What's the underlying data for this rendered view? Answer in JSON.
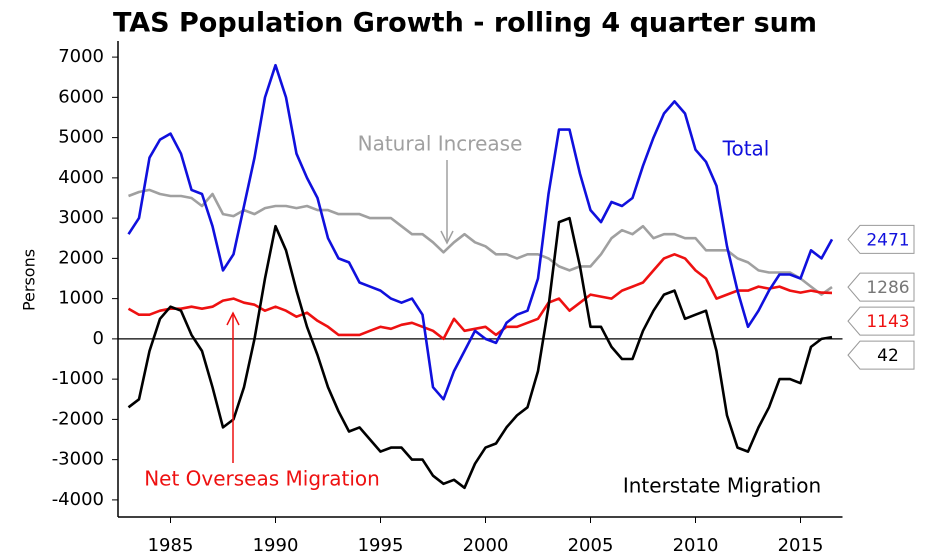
{
  "chart_data": {
    "type": "line",
    "title": "TAS Population Growth - rolling 4 quarter sum",
    "y_label": "Persons",
    "x": [
      1983,
      1983.5,
      1984,
      1984.5,
      1985,
      1985.5,
      1986,
      1986.5,
      1987,
      1987.5,
      1988,
      1988.5,
      1989,
      1989.5,
      1990,
      1990.5,
      1991,
      1991.5,
      1992,
      1992.5,
      1993,
      1993.5,
      1994,
      1994.5,
      1995,
      1995.5,
      1996,
      1996.5,
      1997,
      1997.5,
      1998,
      1998.5,
      1999,
      1999.5,
      2000,
      2000.5,
      2001,
      2001.5,
      2002,
      2002.5,
      2003,
      2003.5,
      2004,
      2004.5,
      2005,
      2005.5,
      2006,
      2006.5,
      2007,
      2007.5,
      2008,
      2008.5,
      2009,
      2009.5,
      2010,
      2010.5,
      2011,
      2011.5,
      2012,
      2012.5,
      2013,
      2013.5,
      2014,
      2014.5,
      2015,
      2015.5,
      2016,
      2016.5
    ],
    "series": [
      {
        "name": "Total",
        "color": "#1010dd",
        "values": [
          2600,
          3000,
          4500,
          4950,
          5100,
          4600,
          3700,
          3600,
          2800,
          1700,
          2100,
          3300,
          4500,
          6000,
          6800,
          6000,
          4600,
          4000,
          3500,
          2500,
          2000,
          1900,
          1400,
          1300,
          1200,
          1000,
          900,
          1000,
          600,
          -1200,
          -1500,
          -800,
          -300,
          200,
          0,
          -100,
          400,
          600,
          700,
          1500,
          3600,
          5200,
          5200,
          4100,
          3200,
          2900,
          3400,
          3300,
          3500,
          4300,
          5000,
          5600,
          5900,
          5600,
          4700,
          4400,
          3800,
          2300,
          1200,
          300,
          700,
          1200,
          1600,
          1600,
          1500,
          2200,
          2000,
          2471
        ]
      },
      {
        "name": "Natural Increase",
        "color": "#a0a0a0",
        "values": [
          3550,
          3650,
          3700,
          3600,
          3550,
          3550,
          3500,
          3300,
          3600,
          3100,
          3050,
          3200,
          3100,
          3250,
          3300,
          3300,
          3250,
          3300,
          3200,
          3200,
          3100,
          3100,
          3100,
          3000,
          3000,
          3000,
          2800,
          2600,
          2600,
          2400,
          2150,
          2400,
          2600,
          2400,
          2300,
          2100,
          2100,
          2000,
          2100,
          2100,
          2000,
          1800,
          1700,
          1800,
          1800,
          2100,
          2500,
          2700,
          2600,
          2800,
          2500,
          2600,
          2600,
          2500,
          2500,
          2200,
          2200,
          2200,
          2000,
          1900,
          1700,
          1650,
          1650,
          1650,
          1500,
          1300,
          1100,
          1286
        ]
      },
      {
        "name": "Net Overseas Migration",
        "color": "#ee1111",
        "values": [
          750,
          600,
          600,
          700,
          750,
          750,
          800,
          750,
          800,
          950,
          1000,
          900,
          850,
          700,
          800,
          700,
          550,
          650,
          450,
          300,
          100,
          100,
          100,
          200,
          300,
          250,
          350,
          400,
          300,
          200,
          0,
          500,
          200,
          250,
          300,
          100,
          300,
          300,
          400,
          500,
          900,
          1000,
          700,
          900,
          1100,
          1050,
          1000,
          1200,
          1300,
          1400,
          1700,
          2000,
          2100,
          2000,
          1700,
          1500,
          1000,
          1100,
          1200,
          1200,
          1300,
          1250,
          1300,
          1200,
          1150,
          1200,
          1150,
          1143
        ]
      },
      {
        "name": "Interstate Migration",
        "color": "#000000",
        "values": [
          -1700,
          -1500,
          -300,
          500,
          800,
          700,
          100,
          -300,
          -1200,
          -2200,
          -2000,
          -1200,
          0,
          1500,
          2800,
          2200,
          1200,
          300,
          -400,
          -1200,
          -1800,
          -2300,
          -2200,
          -2500,
          -2800,
          -2700,
          -2700,
          -3000,
          -3000,
          -3400,
          -3600,
          -3500,
          -3700,
          -3100,
          -2700,
          -2600,
          -2200,
          -1900,
          -1700,
          -800,
          800,
          2900,
          3000,
          1800,
          300,
          300,
          -200,
          -500,
          -500,
          200,
          700,
          1100,
          1200,
          500,
          600,
          700,
          -300,
          -1900,
          -2700,
          -2800,
          -2200,
          -1700,
          -1000,
          -1000,
          -1100,
          -200,
          0,
          42
        ]
      }
    ],
    "xlim": [
      1982.5,
      2017
    ],
    "ylim": [
      -4400,
      7400
    ],
    "xticks": [
      1985,
      1990,
      1995,
      2000,
      2005,
      2010,
      2015
    ],
    "yticks": [
      -4000,
      -3000,
      -2000,
      -1000,
      0,
      1000,
      2000,
      3000,
      4000,
      5000,
      6000,
      7000
    ],
    "grid": false
  }
}
